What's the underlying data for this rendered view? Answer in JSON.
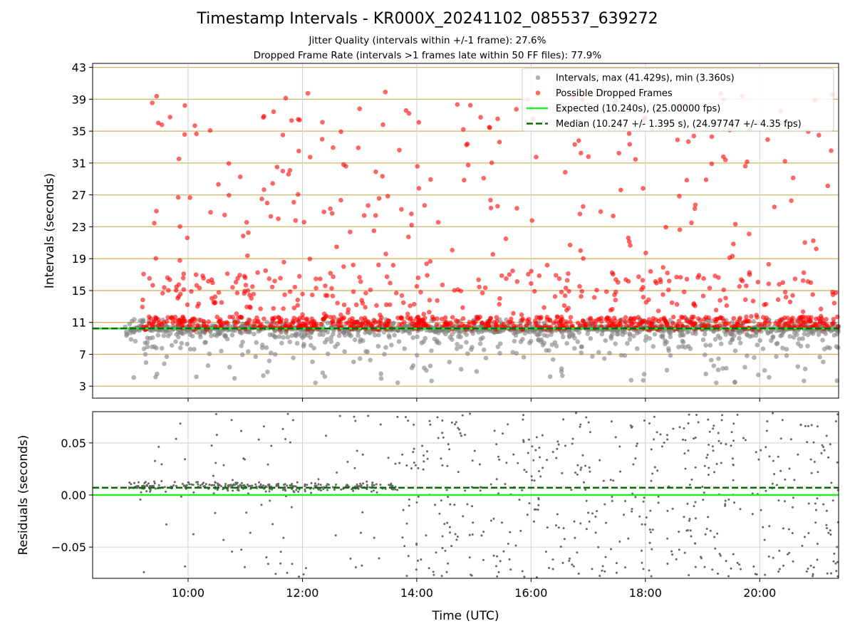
{
  "figure": {
    "title": "Timestamp Intervals - KR000X_20241102_085537_639272",
    "subtitle_jitter": "Jitter Quality (intervals within +/-1 frame): 27.6%",
    "subtitle_dropped": "Dropped Frame Rate (intervals >1 frames late within 50 FF files): 77.9%"
  },
  "colors": {
    "intervals": "#808080",
    "dropped": "#ff0000",
    "expected": "#22ee22",
    "median": "#007000",
    "hline": "#d4b46a",
    "grid": "#d0d0d0"
  },
  "chart_data": [
    {
      "type": "scatter",
      "ylabel": "Intervals (seconds)",
      "xlim": [
        8.33,
        21.38
      ],
      "ylim": [
        1.5,
        43.5
      ],
      "yticks": [
        3,
        7,
        11,
        15,
        19,
        23,
        27,
        31,
        35,
        39,
        43
      ],
      "ytick_labels": [
        "3",
        "7",
        "11",
        "15",
        "19",
        "23",
        "27",
        "31",
        "35",
        "39",
        "43"
      ],
      "xticks": [
        10,
        12,
        14,
        16,
        18,
        20
      ],
      "horizontal_lines_at_yticks": true,
      "grid": "x",
      "legend_position": "top-right",
      "legend": [
        {
          "label": "Intervals, max (41.429s), min (3.360s)",
          "kind": "marker",
          "color": "#808080"
        },
        {
          "label": "Possible Dropped Frames",
          "kind": "marker",
          "color": "#ff0000"
        },
        {
          "label": "Expected (10.240s), (25.00000 fps)",
          "kind": "solid-line",
          "color": "#22ee22"
        },
        {
          "label": "Median (10.247 +/- 1.395 s), (24.97747 +/- 4.35 fps)",
          "kind": "dashed-line",
          "color": "#007000"
        }
      ],
      "expected_value": 10.24,
      "median_value": 10.247,
      "intervals_max": 41.429,
      "intervals_min": 3.36,
      "time_range_hours": [
        8.9,
        21.38
      ],
      "normal_band": [
        9.2,
        11.4
      ],
      "sample_counts": {
        "intervals": 1500,
        "dropped": 1100
      }
    },
    {
      "type": "scatter",
      "xlabel": "Time (UTC)",
      "ylabel": "Residuals (seconds)",
      "xlim": [
        8.33,
        21.38
      ],
      "ylim": [
        -0.08,
        0.08
      ],
      "yticks": [
        0.05,
        0.0,
        -0.05
      ],
      "ytick_labels": [
        "0.05",
        "0.00",
        "−0.05"
      ],
      "xticks": [
        10,
        12,
        14,
        16,
        18,
        20
      ],
      "xtick_labels": [
        "10:00",
        "12:00",
        "14:00",
        "16:00",
        "18:00",
        "20:00"
      ],
      "grid": "both",
      "expected_residual": 0.0,
      "median_residual": 0.007,
      "sample_count": 900
    }
  ]
}
